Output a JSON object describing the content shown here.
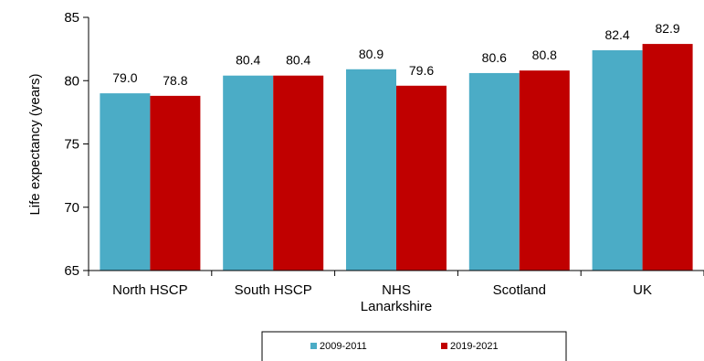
{
  "chart_data": {
    "type": "bar",
    "title": "",
    "ylabel": "Life expectancy (years)",
    "xlabel": "",
    "ylim": [
      65,
      85
    ],
    "yticks": [
      65,
      70,
      75,
      80,
      85
    ],
    "grid": false,
    "legend_position": "bottom",
    "categories": [
      [
        "North HSCP"
      ],
      [
        "South HSCP"
      ],
      [
        "NHS",
        "Lanarkshire"
      ],
      [
        "Scotland"
      ],
      [
        "UK"
      ]
    ],
    "series": [
      {
        "name": "2009-2011",
        "color": "#4BACC6",
        "values": [
          79.0,
          80.4,
          80.9,
          80.6,
          82.4
        ],
        "labels": [
          "79.0",
          "80.4",
          "80.9",
          "80.6",
          "82.4"
        ]
      },
      {
        "name": "2019-2021",
        "color": "#C00000",
        "values": [
          78.8,
          80.4,
          79.6,
          80.8,
          82.9
        ],
        "labels": [
          "78.8",
          "80.4",
          "79.6",
          "80.8",
          "82.9"
        ]
      }
    ]
  }
}
